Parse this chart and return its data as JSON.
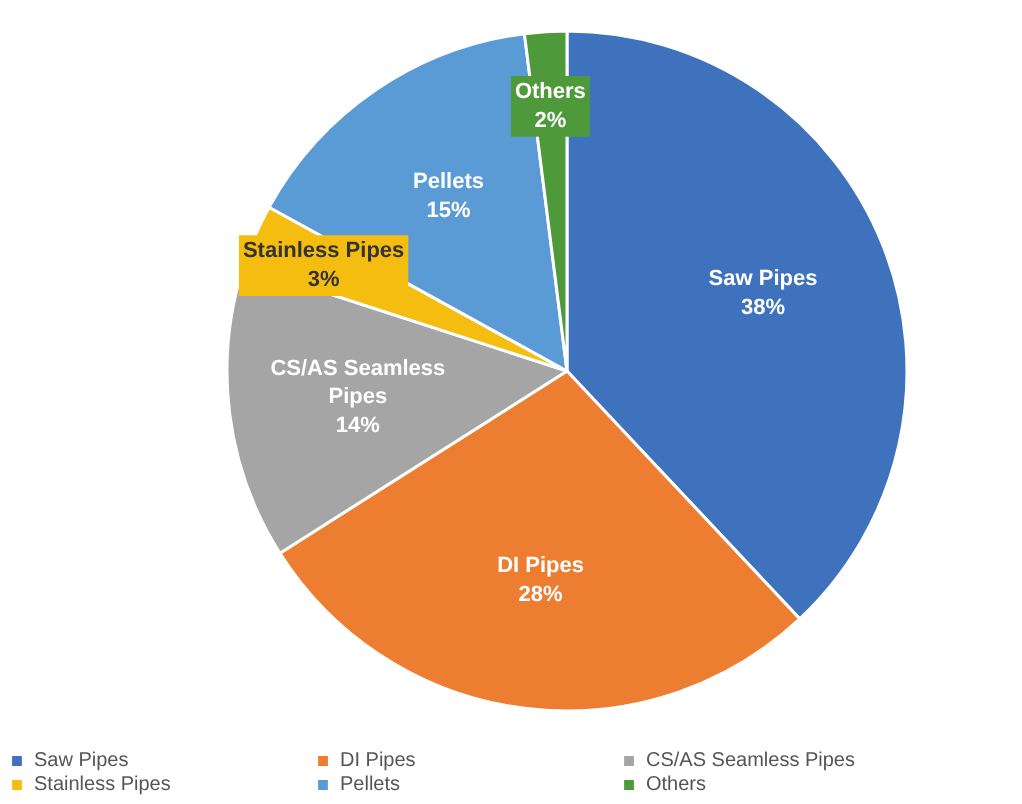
{
  "chart_data": {
    "type": "pie",
    "categories": [
      "Saw Pipes",
      "DI Pipes",
      "CS/AS Seamless Pipes",
      "Stainless Pipes",
      "Pellets",
      "Others"
    ],
    "values": [
      38,
      28,
      14,
      3,
      15,
      2
    ],
    "value_labels": [
      "38%",
      "28%",
      "14%",
      "3%",
      "15%",
      "2%"
    ],
    "colors": [
      "#3f72bd",
      "#ed7d31",
      "#a5a5a5",
      "#f5bd10",
      "#5b9bd5",
      "#4e9a3a"
    ],
    "legend": "bottom"
  }
}
